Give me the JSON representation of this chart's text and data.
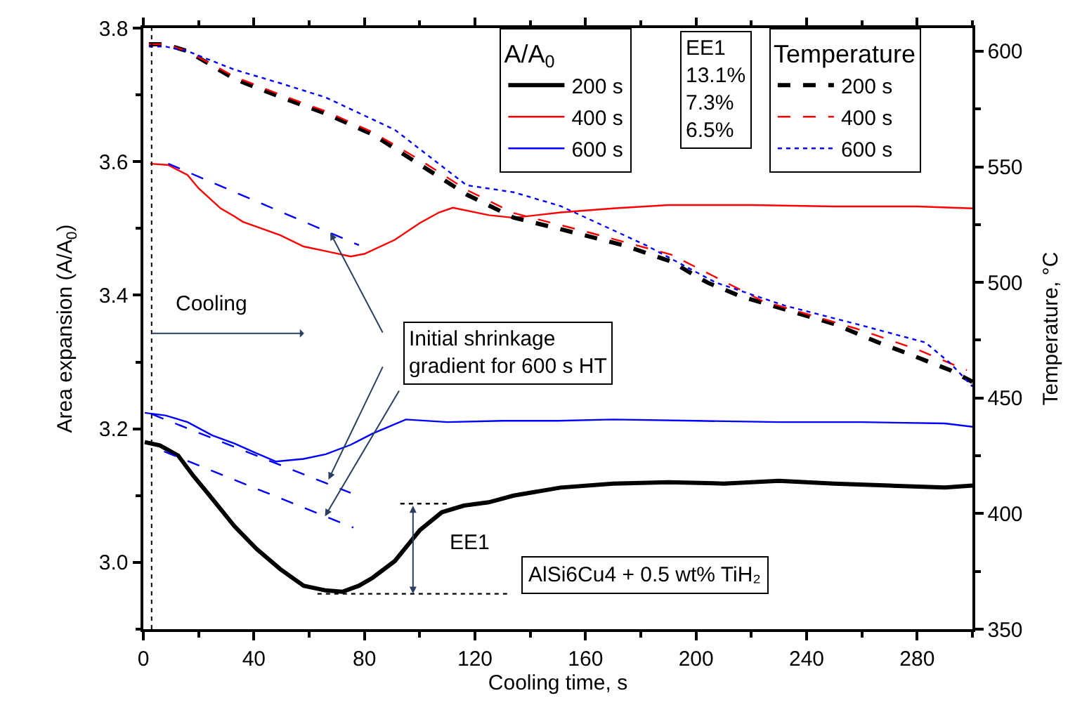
{
  "chart_data": {
    "type": "line",
    "xlabel": "Cooling time, s",
    "ylabel": "Area expansion (A/A$_{0}$)",
    "y2label": "Temperature, °C",
    "legend_title": "A/A$_{0}$",
    "xlim": [
      0,
      300
    ],
    "ylim": [
      2.9,
      3.8
    ],
    "y2lim": [
      350,
      610
    ],
    "xticks": [
      0,
      {
        "value": 20,
        "label": null
      },
      40,
      {
        "value": 60,
        "label": null
      },
      80,
      {
        "value": 100,
        "label": null
      },
      120,
      {
        "value": 140,
        "label": null
      },
      160,
      {
        "value": 180,
        "label": null
      },
      200,
      {
        "value": 220,
        "label": null
      },
      240,
      {
        "value": 260,
        "label": null
      },
      280,
      {
        "value": 300,
        "label": null
      }
    ],
    "yticks": [
      {
        "value": 2.9,
        "label": null
      },
      {
        "value": 3.0,
        "label": "3.0"
      },
      {
        "value": 3.1,
        "label": null
      },
      3.2,
      {
        "value": 3.3,
        "label": null
      },
      3.4,
      {
        "value": 3.5,
        "label": null
      },
      3.6,
      {
        "value": 3.7,
        "label": null
      },
      3.8
    ],
    "y2ticks": [
      350,
      {
        "value": 375,
        "label": null
      },
      400,
      {
        "value": 425,
        "label": null
      },
      450,
      {
        "value": 475,
        "label": null
      },
      500,
      {
        "value": 525,
        "label": null
      },
      550,
      {
        "value": 575,
        "label": null
      },
      600
    ],
    "legend": "top right",
    "marker": "none",
    "series": [
      {
        "name": "200 s",
        "color": "#000000",
        "line_style": "solid",
        "x": [
          0.5,
          6,
          12.6,
          18,
          24,
          33,
          41,
          49.5,
          58,
          66,
          72,
          78,
          83,
          91,
          100,
          108,
          116,
          125,
          134,
          151,
          170,
          190,
          210,
          230,
          250,
          270,
          290,
          300
        ],
        "values": [
          3.18,
          3.175,
          3.16,
          3.13,
          3.1,
          3.054,
          3.02,
          2.99,
          2.965,
          2.958,
          2.956,
          2.965,
          2.977,
          3.002,
          3.048,
          3.075,
          3.085,
          3.09,
          3.1,
          3.112,
          3.118,
          3.12,
          3.118,
          3.122,
          3.118,
          3.115,
          3.112,
          3.115
        ]
      },
      {
        "name": "400 s",
        "color": "#ff0000",
        "line_style": "solid",
        "x": [
          2.5,
          9,
          16,
          20,
          28,
          33,
          36,
          49.5,
          58,
          66,
          75,
          80,
          91,
          100,
          107,
          112,
          125,
          134,
          151,
          170,
          190,
          220,
          250,
          280,
          300
        ],
        "values": [
          3.597,
          3.595,
          3.58,
          3.56,
          3.53,
          3.518,
          3.51,
          3.49,
          3.473,
          3.466,
          3.458,
          3.462,
          3.483,
          3.508,
          3.524,
          3.531,
          3.52,
          3.516,
          3.524,
          3.53,
          3.535,
          3.535,
          3.533,
          3.533,
          3.53
        ]
      },
      {
        "name": "600 s",
        "color": "#0000ff",
        "line_style": "solid",
        "x": [
          0.5,
          8,
          16,
          25,
          33,
          40,
          48,
          58,
          66,
          75,
          83,
          95,
          110,
          130,
          150,
          170,
          200,
          230,
          260,
          290,
          300
        ],
        "values": [
          3.224,
          3.22,
          3.21,
          3.19,
          3.178,
          3.165,
          3.151,
          3.155,
          3.162,
          3.176,
          3.193,
          3.214,
          3.21,
          3.212,
          3.212,
          3.214,
          3.212,
          3.21,
          3.21,
          3.208,
          3.203
        ]
      },
      {
        "name": "200 s",
        "color": "#000000",
        "line_style": "dashed",
        "axis": "y2",
        "x": [
          2,
          8,
          16,
          33,
          50,
          66,
          83,
          100,
          117,
          134,
          151,
          174,
          191,
          204,
          216,
          233,
          250,
          266,
          277,
          292,
          300
        ],
        "values": [
          603,
          603,
          600,
          588,
          580,
          573,
          564,
          551,
          538,
          528,
          523,
          516,
          509,
          500,
          494,
          488,
          482,
          474,
          469,
          462,
          457
        ]
      },
      {
        "name": "400 s",
        "color": "#ff0000",
        "line_style": "dashed",
        "axis": "y2",
        "x": [
          2,
          8,
          16,
          33,
          50,
          66,
          83,
          100,
          117,
          134,
          160,
          191,
          224,
          258,
          280,
          298
        ],
        "values": [
          603,
          603,
          600,
          589,
          581,
          574,
          565,
          553,
          540,
          530,
          522,
          512,
          492,
          480,
          471,
          462
        ]
      },
      {
        "name": "600 s",
        "color": "#0000ff",
        "line_style": "dotted",
        "axis": "y2",
        "x": [
          2,
          8,
          16,
          33,
          50,
          66,
          91,
          117,
          134,
          151,
          182,
          207,
          232,
          258,
          283,
          292,
          300
        ],
        "values": [
          602,
          602,
          600,
          592,
          586,
          580,
          566,
          542,
          539,
          533,
          516,
          500,
          490,
          482,
          474,
          465,
          455
        ]
      },
      {
        "color": "#0000ff",
        "line_style": "dashed",
        "x": [
          9,
          78
        ],
        "values": [
          3.597,
          3.475
        ]
      },
      {
        "color": "#0000ff",
        "line_style": "dashed",
        "x": [
          3,
          75
        ],
        "values": [
          3.222,
          3.104
        ]
      },
      {
        "color": "#0000ff",
        "line_style": "dashed",
        "x": [
          7.5,
          76
        ],
        "values": [
          3.166,
          3.052
        ]
      },
      {
        "color": "#000000",
        "line_style": "dotted",
        "x": [
          93,
          110
        ],
        "values": [
          3.088,
          3.088
        ]
      },
      {
        "color": "#000000",
        "line_style": "dotted",
        "x": [
          63,
          133
        ],
        "values": [
          2.953,
          2.953
        ]
      }
    ],
    "ref_lines": [
      {
        "axis": "x",
        "value": 3,
        "color": "#000000",
        "line_style": "dotted"
      }
    ],
    "annotations": [
      "Cooling",
      {
        "text": "Initial shrinkage\ngradient for 600 s HT",
        "x": 67,
        "y": 3.124
      },
      "EE1",
      "AlSi6Cu4 + 0.5 wt% TiH₂",
      "EE1",
      "13.1%",
      "7.3%",
      "6.5%",
      "Temperature"
    ]
  }
}
